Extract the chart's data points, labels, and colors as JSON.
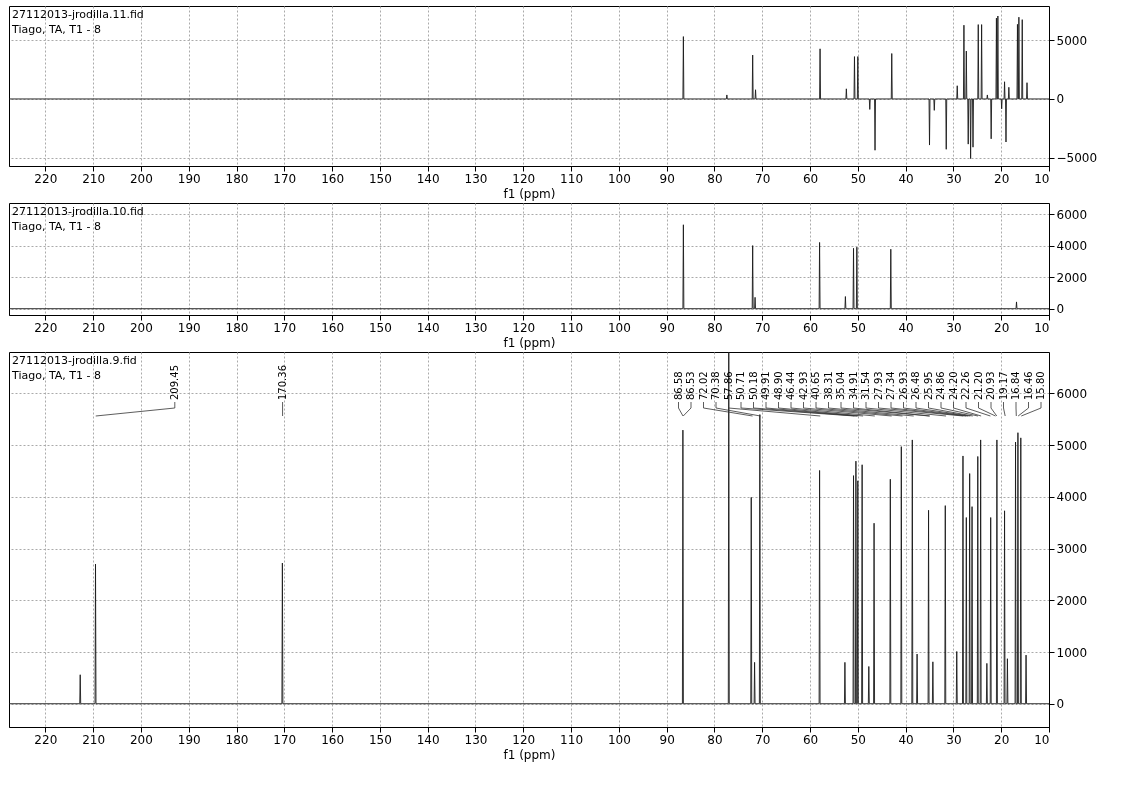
{
  "chart_data": [
    {
      "type": "line",
      "title": "27112013-jrodilla.11.fid",
      "subtitle": "Tiago,  TA,  T1 - 8",
      "xlabel": "f1 (ppm)",
      "series": [
        {
          "color": "#1a1a1a",
          "x": [
            227.6,
            86.6,
            86.5,
            86.4,
            77.5,
            77.4,
            77.3,
            72.1,
            72.0,
            71.9,
            71.5,
            71.4,
            71.3,
            58.0,
            57.9,
            57.8,
            52.5,
            52.4,
            52.3,
            50.8,
            50.7,
            50.6,
            50.1,
            50.0,
            49.9,
            47.6,
            47.5,
            47.4,
            46.5,
            46.4,
            46.3,
            43.0,
            42.9,
            42.8,
            35.1,
            35.0,
            34.9,
            34.1,
            34.0,
            33.9,
            31.6,
            31.5,
            31.4,
            29.3,
            29.2,
            29.1,
            27.9,
            27.8,
            27.7,
            27.4,
            27.3,
            27.2,
            27.0,
            26.9,
            26.8,
            26.5,
            26.4,
            26.3,
            26.0,
            25.9,
            25.8,
            24.9,
            24.8,
            24.7,
            24.2,
            24.1,
            24.0,
            23.0,
            22.9,
            22.8,
            22.2,
            22.1,
            22.0,
            21.1,
            21.0,
            20.9,
            20.8,
            20.7,
            20.6,
            20.0,
            19.9,
            19.8,
            19.4,
            19.3,
            19.2,
            19.1,
            19.0,
            18.9,
            18.5,
            18.4,
            18.3,
            16.7,
            16.6,
            16.5,
            16.4,
            16.3,
            16.2,
            15.7,
            15.6,
            15.5,
            14.7,
            14.6,
            14.5,
            10
          ],
          "values": [
            0,
            0,
            5300,
            0,
            0,
            340,
            0,
            0,
            3730,
            0,
            0,
            780,
            0,
            0,
            4260,
            0,
            0,
            860,
            0,
            0,
            3600,
            0,
            0,
            3600,
            0,
            0,
            -890,
            0,
            0,
            -4360,
            0,
            0,
            3860,
            0,
            0,
            -3920,
            0,
            0,
            -970,
            0,
            0,
            -4280,
            0,
            0,
            1120,
            0,
            0,
            6270,
            0,
            0,
            4070,
            0,
            0,
            -3840,
            0,
            0,
            -5070,
            0,
            0,
            -4100,
            0,
            0,
            6320,
            0,
            0,
            6320,
            0,
            0,
            340,
            0,
            0,
            -3390,
            0,
            0,
            6870,
            0,
            0,
            7050,
            0,
            0,
            -840,
            0,
            0,
            1460,
            0,
            0,
            -3660,
            0,
            0,
            990,
            0,
            0,
            6340,
            0,
            0,
            6950,
            0,
            0,
            6740,
            0,
            0,
            1380,
            0,
            0
          ]
        }
      ],
      "xlim": [
        227.6,
        10
      ],
      "xticks": [
        220,
        210,
        200,
        190,
        180,
        170,
        160,
        150,
        140,
        130,
        120,
        110,
        100,
        90,
        80,
        70,
        60,
        50,
        40,
        30,
        20,
        10
      ],
      "ylim": [
        -5700,
        7900
      ],
      "yticks": [
        -5000,
        0,
        5000
      ],
      "grid": true,
      "line_style": "solid"
    },
    {
      "type": "line",
      "title": "27112013-jrodilla.10.fid",
      "subtitle": "Tiago,  TA,  T1 - 8",
      "xlabel": "f1 (ppm)",
      "series": [
        {
          "color": "#1a1a1a",
          "x": [
            227.6,
            86.6,
            86.5,
            86.4,
            72.1,
            72.0,
            71.9,
            71.6,
            71.5,
            71.4,
            58.1,
            58.0,
            57.9,
            52.7,
            52.6,
            52.5,
            51.0,
            50.9,
            50.8,
            50.3,
            50.2,
            50.1,
            43.2,
            43.1,
            43.0,
            16.9,
            16.8,
            16.7,
            10
          ],
          "values": [
            0,
            0,
            5320,
            0,
            0,
            4000,
            0,
            0,
            720,
            0,
            0,
            4200,
            0,
            0,
            770,
            0,
            0,
            3830,
            0,
            0,
            3900,
            0,
            0,
            3770,
            0,
            0,
            430,
            0,
            0
          ]
        }
      ],
      "xlim": [
        227.6,
        10
      ],
      "xticks": [
        220,
        210,
        200,
        190,
        180,
        170,
        160,
        150,
        140,
        130,
        120,
        110,
        100,
        90,
        80,
        70,
        60,
        50,
        40,
        30,
        20,
        10
      ],
      "ylim": [
        -400,
        6700
      ],
      "yticks": [
        0,
        2000,
        4000,
        6000
      ],
      "grid": true,
      "line_style": "solid"
    },
    {
      "type": "line",
      "title": "27112013-jrodilla.9.fid",
      "subtitle": "Tiago,  TA,  T1 - 8",
      "xlabel": "f1 (ppm)",
      "series": [
        {
          "color": "#1a1a1a",
          "x": [
            227.6,
            212.8,
            212.7,
            212.6,
            209.6,
            209.5,
            209.4,
            170.5,
            170.4,
            170.3,
            86.7,
            86.6,
            86.5,
            77.1,
            77.0,
            76.9,
            72.4,
            72.3,
            72.2,
            71.7,
            71.6,
            71.5,
            70.6,
            70.5,
            70.4,
            58.1,
            58.0,
            57.9,
            52.8,
            52.7,
            52.6,
            51.0,
            50.9,
            50.8,
            50.5,
            50.4,
            50.3,
            50.1,
            50.0,
            49.9,
            49.2,
            49.1,
            49.0,
            47.8,
            47.7,
            47.6,
            46.7,
            46.6,
            46.5,
            43.3,
            43.2,
            43.1,
            41.0,
            40.9,
            40.8,
            38.7,
            38.6,
            38.5,
            37.7,
            37.6,
            37.5,
            35.3,
            35.2,
            35.1,
            34.4,
            34.3,
            34.2,
            31.8,
            31.7,
            31.6,
            29.4,
            29.3,
            29.2,
            28.1,
            28.0,
            27.9,
            27.4,
            27.3,
            27.2,
            26.7,
            26.6,
            26.5,
            26.2,
            26.1,
            26.0,
            25.0,
            24.9,
            24.8,
            24.4,
            24.3,
            24.2,
            23.1,
            23.0,
            22.9,
            22.3,
            22.2,
            22.1,
            21.0,
            20.9,
            20.8,
            19.4,
            19.3,
            19.2,
            18.8,
            18.7,
            18.6,
            17.1,
            17.0,
            16.9,
            16.6,
            16.5,
            16.4,
            16.0,
            15.9,
            15.8,
            14.9,
            14.8,
            14.7,
            10
          ],
          "values": [
            0,
            0,
            560,
            0,
            0,
            2700,
            0,
            0,
            2720,
            0,
            0,
            5290,
            0,
            0,
            6800,
            0,
            0,
            3990,
            0,
            0,
            800,
            0,
            0,
            5590,
            0,
            0,
            4510,
            0,
            0,
            800,
            0,
            0,
            4410,
            0,
            0,
            4690,
            0,
            0,
            4310,
            0,
            0,
            4620,
            0,
            0,
            720,
            0,
            0,
            3490,
            0,
            0,
            4340,
            0,
            0,
            4970,
            0,
            0,
            5100,
            0,
            0,
            960,
            0,
            0,
            3740,
            0,
            0,
            810,
            0,
            0,
            3830,
            0,
            0,
            1010,
            0,
            0,
            4790,
            0,
            0,
            3600,
            0,
            0,
            4450,
            0,
            0,
            3810,
            0,
            0,
            4780,
            0,
            0,
            5100,
            0,
            0,
            780,
            0,
            0,
            3600,
            0,
            0,
            5100,
            0,
            0,
            3730,
            0,
            0,
            870,
            0,
            0,
            5060,
            0,
            0,
            5240,
            0,
            0,
            5140,
            0,
            0,
            940,
            0,
            0
          ]
        }
      ],
      "xlim": [
        227.6,
        10
      ],
      "xticks": [
        220,
        210,
        200,
        190,
        180,
        170,
        160,
        150,
        140,
        130,
        120,
        110,
        100,
        90,
        80,
        70,
        60,
        50,
        40,
        30,
        20,
        10
      ],
      "ylim": [
        -450,
        6800
      ],
      "yticks": [
        0,
        1000,
        2000,
        3000,
        4000,
        5000,
        6000
      ],
      "grid": true,
      "line_style": "solid",
      "annotations": [
        {
          "text": "209.45",
          "x": 209.45
        },
        {
          "text": "170.36",
          "x": 170.36
        },
        {
          "text": "86.58",
          "x": 86.58
        },
        {
          "text": "86.53",
          "x": 86.53
        },
        {
          "text": "72.02",
          "x": 72.02
        },
        {
          "text": "70.38",
          "x": 70.38
        },
        {
          "text": "57.86",
          "x": 57.86
        },
        {
          "text": "50.71",
          "x": 50.71
        },
        {
          "text": "50.18",
          "x": 50.18
        },
        {
          "text": "49.91",
          "x": 49.91
        },
        {
          "text": "48.90",
          "x": 48.9
        },
        {
          "text": "46.44",
          "x": 46.44
        },
        {
          "text": "42.93",
          "x": 42.93
        },
        {
          "text": "40.65",
          "x": 40.65
        },
        {
          "text": "38.31",
          "x": 38.31
        },
        {
          "text": "35.04",
          "x": 35.04
        },
        {
          "text": "34.91",
          "x": 34.91
        },
        {
          "text": "31.54",
          "x": 31.54
        },
        {
          "text": "27.93",
          "x": 27.93
        },
        {
          "text": "27.34",
          "x": 27.34
        },
        {
          "text": "26.93",
          "x": 26.93
        },
        {
          "text": "26.48",
          "x": 26.48
        },
        {
          "text": "25.95",
          "x": 25.95
        },
        {
          "text": "24.86",
          "x": 24.86
        },
        {
          "text": "24.20",
          "x": 24.2
        },
        {
          "text": "22.26",
          "x": 22.26
        },
        {
          "text": "21.20",
          "x": 21.2
        },
        {
          "text": "20.93",
          "x": 20.93
        },
        {
          "text": "19.17",
          "x": 19.17
        },
        {
          "text": "16.84",
          "x": 16.84
        },
        {
          "text": "16.46",
          "x": 16.46
        },
        {
          "text": "15.80",
          "x": 15.8
        }
      ]
    }
  ]
}
